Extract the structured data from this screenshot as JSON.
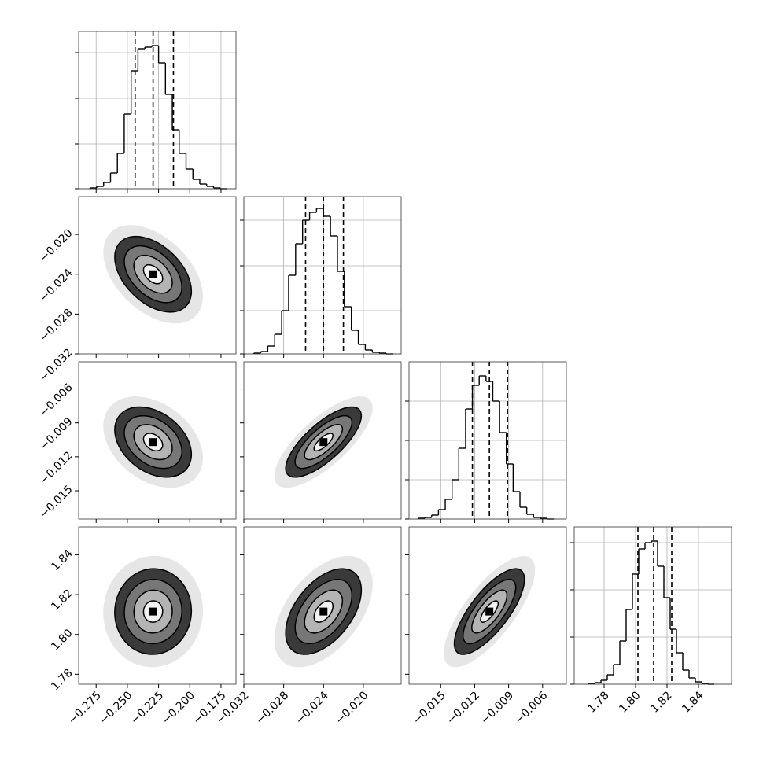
{
  "chart_data": {
    "type": "corner",
    "contour_levels": [
      0.5,
      1,
      1.5,
      2
    ],
    "correlations": [
      [],
      [
        -0.45
      ],
      [
        -0.35,
        0.75
      ],
      [
        0.02,
        0.5,
        0.75
      ]
    ],
    "params": [
      {
        "xlim": [
          -0.289,
          -0.163
        ],
        "xticks": [
          {
            "value": -0.275,
            "label": "−0.275"
          },
          {
            "value": -0.25,
            "label": "−0.250"
          },
          {
            "value": -0.225,
            "label": "−0.225"
          },
          {
            "value": -0.2,
            "label": "−0.200"
          },
          {
            "value": -0.175,
            "label": "−0.175"
          }
        ],
        "quantiles": [
          -0.2438,
          -0.2294,
          -0.2131
        ],
        "hist": {
          "bins": [
            -0.28,
            -0.2745,
            -0.269,
            -0.2635,
            -0.258,
            -0.2525,
            -0.247,
            -0.2415,
            -0.236,
            -0.2305,
            -0.225,
            -0.2195,
            -0.214,
            -0.2085,
            -0.203,
            -0.1975,
            -0.192,
            -0.1865,
            -0.181,
            -0.1755,
            -0.17
          ],
          "counts": [
            1,
            3,
            8,
            20,
            45,
            95,
            150,
            178,
            180,
            182,
            160,
            120,
            75,
            45,
            25,
            12,
            6,
            3,
            1,
            0
          ],
          "ylim": [
            0,
            200
          ],
          "yticks": [
            0,
            57,
            115,
            173
          ]
        }
      },
      {
        "xlim": [
          -0.032,
          -0.0162
        ],
        "ylim": [
          -0.032,
          -0.0162
        ],
        "xticks": [
          {
            "value": -0.032,
            "label": "−0.032"
          },
          {
            "value": -0.028,
            "label": "−0.028"
          },
          {
            "value": -0.024,
            "label": "−0.024"
          },
          {
            "value": -0.02,
            "label": "−0.020"
          }
        ],
        "yticks": [
          {
            "value": -0.032,
            "label": "−0.032"
          },
          {
            "value": -0.028,
            "label": "−0.028"
          },
          {
            "value": -0.024,
            "label": "−0.024"
          },
          {
            "value": -0.02,
            "label": "−0.020"
          }
        ],
        "quantiles": [
          -0.0258,
          -0.024,
          -0.022
        ],
        "hist": {
          "bins": [
            -0.031,
            -0.0303,
            -0.0296,
            -0.0289,
            -0.0282,
            -0.0275,
            -0.0268,
            -0.0261,
            -0.0254,
            -0.0247,
            -0.024,
            -0.0233,
            -0.0226,
            -0.0219,
            -0.0212,
            -0.0205,
            -0.0198,
            -0.0191,
            -0.0184,
            -0.0177,
            -0.017
          ],
          "counts": [
            1,
            3,
            10,
            25,
            55,
            100,
            140,
            170,
            180,
            185,
            175,
            150,
            105,
            60,
            30,
            12,
            5,
            2,
            1,
            0
          ],
          "ylim": [
            0,
            200
          ],
          "yticks": [
            0,
            55,
            112,
            170
          ]
        }
      },
      {
        "xlim": [
          -0.0178,
          -0.0039
        ],
        "ylim": [
          -0.0175,
          -0.0036
        ],
        "xticks": [
          {
            "value": -0.015,
            "label": "−0.015"
          },
          {
            "value": -0.012,
            "label": "−0.012"
          },
          {
            "value": -0.009,
            "label": "−0.009"
          },
          {
            "value": -0.006,
            "label": "−0.006"
          }
        ],
        "yticks": [
          {
            "value": -0.015,
            "label": "−0.015"
          },
          {
            "value": -0.012,
            "label": "−0.012"
          },
          {
            "value": -0.009,
            "label": "−0.009"
          },
          {
            "value": -0.006,
            "label": "−0.006"
          }
        ],
        "quantiles": [
          -0.0122,
          -0.0107,
          -0.0091
        ],
        "hist": {
          "bins": [
            -0.017,
            -0.0164,
            -0.0158,
            -0.0152,
            -0.0146,
            -0.014,
            -0.0134,
            -0.0128,
            -0.0122,
            -0.0116,
            -0.011,
            -0.0104,
            -0.0098,
            -0.0092,
            -0.0086,
            -0.008,
            -0.0074,
            -0.0068,
            -0.0062,
            -0.0056,
            -0.005
          ],
          "counts": [
            1,
            2,
            5,
            12,
            25,
            50,
            90,
            140,
            170,
            182,
            175,
            150,
            110,
            70,
            35,
            15,
            6,
            2,
            1,
            0
          ],
          "ylim": [
            0,
            200
          ],
          "yticks": [
            0,
            50,
            100,
            150
          ]
        }
      },
      {
        "xlim": [
          1.761,
          1.861
        ],
        "ylim": [
          1.775,
          1.854
        ],
        "xticks": [
          1.78,
          {
            "value": 1.8,
            "label": "1.80"
          },
          1.82,
          1.84
        ],
        "yticks": [
          1.78,
          {
            "value": 1.8,
            "label": "1.80"
          },
          1.82,
          1.84
        ],
        "quantiles": [
          1.8015,
          1.8115,
          1.823
        ],
        "hist": {
          "bins": [
            1.77,
            1.774,
            1.778,
            1.782,
            1.786,
            1.79,
            1.794,
            1.798,
            1.802,
            1.806,
            1.81,
            1.814,
            1.818,
            1.822,
            1.826,
            1.83,
            1.834,
            1.838,
            1.842,
            1.846,
            1.85
          ],
          "counts": [
            1,
            2,
            5,
            12,
            25,
            55,
            95,
            140,
            172,
            180,
            182,
            150,
            110,
            70,
            40,
            18,
            8,
            3,
            1,
            0
          ],
          "ylim": [
            0,
            200
          ],
          "yticks": [
            0,
            60,
            120,
            180
          ]
        }
      }
    ]
  }
}
